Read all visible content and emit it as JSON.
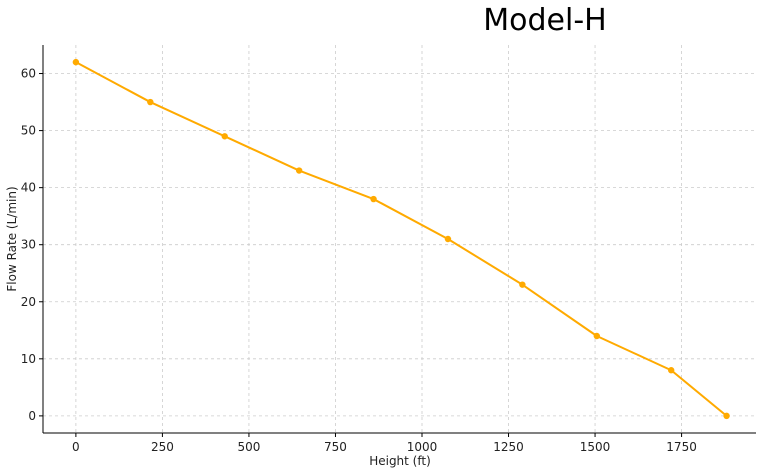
{
  "colors": {
    "line": "#FFAA00",
    "grid": "#cccccc",
    "axis": "#000000",
    "background": "#ffffff"
  },
  "chart_data": {
    "type": "line",
    "title": "Model-H",
    "xlabel": "Height (ft)",
    "ylabel": "Flow Rate (L/min)",
    "xlim": [
      -95,
      1965
    ],
    "ylim": [
      -3,
      65
    ],
    "x_ticks": [
      0,
      250,
      500,
      750,
      1000,
      1250,
      1500,
      1750
    ],
    "y_ticks": [
      0,
      10,
      20,
      30,
      40,
      50,
      60
    ],
    "grid": true,
    "series": [
      {
        "x": [
          0,
          215,
          430,
          645,
          860,
          1075,
          1290,
          1505,
          1720,
          1880
        ],
        "y": [
          62,
          55,
          49,
          43,
          38,
          31,
          23,
          14,
          8,
          0
        ]
      }
    ]
  }
}
